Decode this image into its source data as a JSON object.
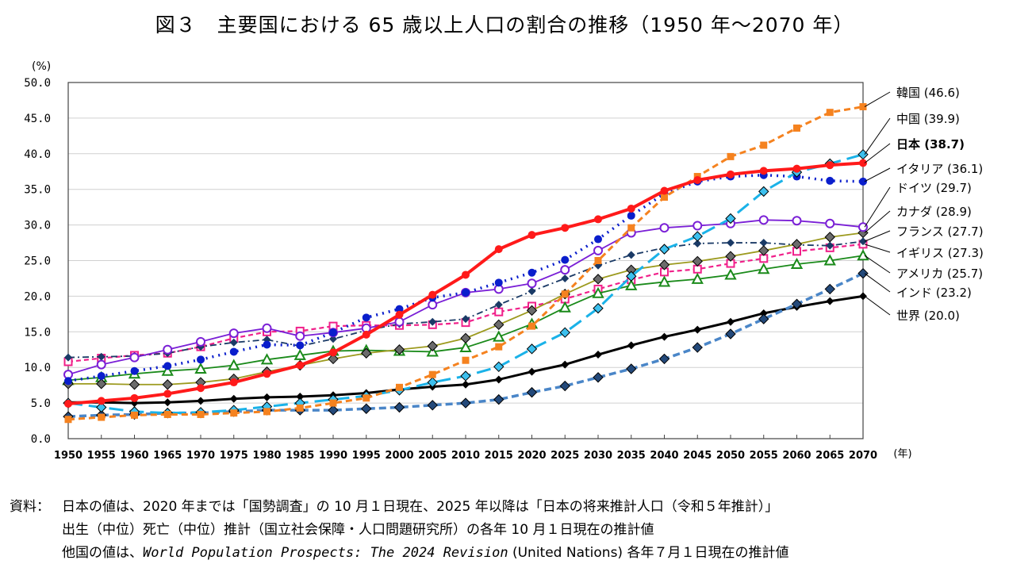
{
  "title": "図３　主要国における 65 歳以上人口の割合の推移（1950 年～2070 年）",
  "chart_data": {
    "type": "line",
    "title": "図３　主要国における 65 歳以上人口の割合の推移（1950 年～2070 年）",
    "ylabel": "(%)",
    "xlabel": "(年)",
    "ylim": [
      0,
      50
    ],
    "yticks": [
      "0.0",
      "5.0",
      "10.0",
      "15.0",
      "20.0",
      "25.0",
      "30.0",
      "35.0",
      "40.0",
      "45.0",
      "50.0"
    ],
    "grid": true,
    "legend": "right (direct labels)",
    "x": [
      1950,
      1955,
      1960,
      1965,
      1970,
      1975,
      1980,
      1985,
      1990,
      1995,
      2000,
      2005,
      2010,
      2015,
      2020,
      2025,
      2030,
      2035,
      2040,
      2045,
      2050,
      2055,
      2060,
      2065,
      2070
    ],
    "series": [
      {
        "name": "韓国",
        "label": "韓国 (46.6)",
        "color": "#f5821f",
        "dash": "8,5",
        "width": 3,
        "marker": "square",
        "fill": "#f5821f",
        "values": [
          2.7,
          3.0,
          3.3,
          3.4,
          3.4,
          3.6,
          3.8,
          4.3,
          5.0,
          5.7,
          7.2,
          9.0,
          11.0,
          12.9,
          15.8,
          20.3,
          25.0,
          29.6,
          33.9,
          36.8,
          39.6,
          41.2,
          43.6,
          45.8,
          46.6
        ]
      },
      {
        "name": "中国",
        "label": "中国 (39.9)",
        "color": "#1ab2e8",
        "dash": "18,8",
        "width": 3,
        "marker": "diamond",
        "fill": "#3cc0ee",
        "values": [
          5.0,
          4.4,
          3.8,
          3.6,
          3.7,
          4.0,
          4.5,
          5.0,
          5.5,
          6.0,
          6.8,
          7.9,
          8.8,
          10.1,
          12.6,
          14.9,
          18.3,
          22.8,
          26.6,
          28.4,
          30.9,
          34.7,
          37.4,
          38.6,
          39.9
        ]
      },
      {
        "name": "日本",
        "label": "日本 (38.7)",
        "bold": true,
        "color": "#ff1a1a",
        "dash": "",
        "width": 4,
        "marker": "circle",
        "fill": "#ff1a1a",
        "values": [
          4.9,
          5.3,
          5.7,
          6.3,
          7.1,
          7.9,
          9.1,
          10.3,
          12.1,
          14.6,
          17.4,
          20.2,
          23.0,
          26.6,
          28.6,
          29.6,
          30.8,
          32.3,
          34.8,
          36.3,
          37.1,
          37.6,
          37.9,
          38.4,
          38.7
        ]
      },
      {
        "name": "イタリア",
        "label": "イタリア (36.1)",
        "color": "#0a1ecc",
        "dash": "2,6",
        "width": 3.5,
        "marker": "circle",
        "fill": "#0a1ecc",
        "values": [
          8.1,
          8.8,
          9.5,
          10.2,
          11.1,
          12.2,
          13.2,
          13.1,
          14.9,
          17.0,
          18.2,
          19.8,
          20.5,
          21.9,
          23.3,
          25.1,
          28.0,
          31.3,
          34.4,
          36.1,
          36.8,
          37.0,
          36.8,
          36.2,
          36.1
        ]
      },
      {
        "name": "ドイツ",
        "label": "ドイツ (29.7)",
        "color": "#7a1fd6",
        "dash": "",
        "width": 1.8,
        "marker": "opencircle",
        "fill": "#ffffff",
        "values": [
          9.0,
          10.4,
          11.4,
          12.5,
          13.6,
          14.8,
          15.5,
          14.4,
          14.9,
          15.5,
          16.4,
          18.8,
          20.5,
          21.0,
          21.8,
          23.7,
          26.4,
          28.9,
          29.6,
          29.9,
          30.2,
          30.7,
          30.6,
          30.2,
          29.7
        ]
      },
      {
        "name": "カナダ",
        "label": "カナダ (28.9)",
        "color": "#9c9a1e",
        "dash": "",
        "width": 1.8,
        "marker": "diamond",
        "fill": "#6b6b6b",
        "values": [
          7.7,
          7.7,
          7.6,
          7.6,
          7.9,
          8.4,
          9.4,
          10.3,
          11.2,
          12.0,
          12.5,
          13.0,
          14.1,
          16.0,
          18.0,
          20.3,
          22.4,
          23.7,
          24.4,
          24.9,
          25.6,
          26.4,
          27.3,
          28.3,
          28.9
        ]
      },
      {
        "name": "フランス",
        "label": "フランス (27.7)",
        "color": "#1a3a66",
        "dash": "8,4,2,4",
        "width": 1.8,
        "marker": "smalldiamond",
        "fill": "#1a3a66",
        "values": [
          11.4,
          11.5,
          11.6,
          12.0,
          12.9,
          13.5,
          13.9,
          13.0,
          14.0,
          15.2,
          16.1,
          16.4,
          16.8,
          18.8,
          20.7,
          22.5,
          24.3,
          25.8,
          26.8,
          27.4,
          27.5,
          27.5,
          27.2,
          27.1,
          27.7
        ]
      },
      {
        "name": "イギリス",
        "label": "イギリス (27.3)",
        "color": "#f0208a",
        "dash": "6,4",
        "width": 2.2,
        "marker": "opensquare",
        "fill": "#ffffff",
        "values": [
          10.8,
          11.3,
          11.7,
          12.0,
          12.9,
          14.1,
          15.0,
          15.1,
          15.8,
          15.9,
          15.9,
          16.0,
          16.3,
          17.8,
          18.6,
          19.6,
          21.0,
          22.3,
          23.4,
          23.8,
          24.6,
          25.3,
          26.3,
          26.8,
          27.3
        ]
      },
      {
        "name": "アメリカ",
        "label": "アメリカ (25.7)",
        "color": "#1a8a1a",
        "dash": "",
        "width": 1.8,
        "marker": "triangle",
        "fill": "#ffffff",
        "values": [
          8.2,
          8.6,
          9.1,
          9.5,
          9.8,
          10.3,
          11.1,
          11.7,
          12.3,
          12.4,
          12.3,
          12.2,
          12.8,
          14.3,
          16.1,
          18.4,
          20.4,
          21.5,
          22.0,
          22.4,
          23.0,
          23.8,
          24.5,
          25.0,
          25.7
        ]
      },
      {
        "name": "インド",
        "label": "インド (23.2)",
        "color": "#4a86c8",
        "dash": "9,5",
        "width": 3.5,
        "marker": "diamond",
        "fill": "#23497a",
        "values": [
          3.1,
          3.3,
          3.4,
          3.6,
          3.6,
          3.8,
          4.0,
          4.0,
          4.0,
          4.2,
          4.4,
          4.7,
          5.0,
          5.5,
          6.5,
          7.4,
          8.6,
          9.8,
          11.2,
          12.8,
          14.7,
          16.8,
          18.9,
          21.0,
          23.2
        ]
      },
      {
        "name": "世界",
        "label": "世界 (20.0)",
        "color": "#000000",
        "dash": "",
        "width": 3,
        "marker": "smalldiamond",
        "fill": "#000000",
        "values": [
          5.1,
          5.1,
          5.0,
          5.1,
          5.3,
          5.6,
          5.8,
          5.9,
          6.1,
          6.4,
          6.9,
          7.3,
          7.6,
          8.3,
          9.4,
          10.4,
          11.8,
          13.1,
          14.3,
          15.3,
          16.4,
          17.6,
          18.5,
          19.3,
          20.0
        ]
      }
    ]
  },
  "footer": {
    "source_label": "資料：",
    "line1": "日本の値は、2020 年までは「国勢調査」の 10 月１日現在、2025 年以降は「日本の将来推計人口（令和５年推計）」",
    "line2": "出生（中位）死亡（中位）推計（国立社会保障・人口問題研究所）の各年 10 月１日現在の推計値",
    "line3_pre": "他国の値は、",
    "line3_italic": "World Population Prospects: The 2024 Revision",
    "line3_post": " (United Nations) 各年７月１日現在の推計値"
  }
}
